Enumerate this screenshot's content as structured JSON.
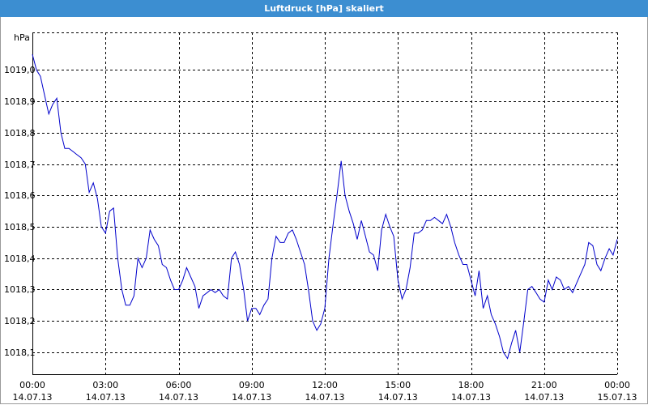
{
  "window": {
    "title": "Luftdruck [hPa] skaliert"
  },
  "chart_data": {
    "type": "line",
    "title": "Luftdruck [hPa] skaliert",
    "ylabel": "hPa",
    "xlabel": "",
    "ylim": [
      1018.03,
      1019.12
    ],
    "xlim": [
      0,
      24
    ],
    "grid": true,
    "line_color": "#0000cc",
    "grid_color": "#000000",
    "x_ticks": [
      {
        "x": 0,
        "time": "00:00",
        "date": "14.07.13"
      },
      {
        "x": 3,
        "time": "03:00",
        "date": "14.07.13"
      },
      {
        "x": 6,
        "time": "06:00",
        "date": "14.07.13"
      },
      {
        "x": 9,
        "time": "09:00",
        "date": "14.07.13"
      },
      {
        "x": 12,
        "time": "12:00",
        "date": "14.07.13"
      },
      {
        "x": 15,
        "time": "15:00",
        "date": "14.07.13"
      },
      {
        "x": 18,
        "time": "18:00",
        "date": "14.07.13"
      },
      {
        "x": 21,
        "time": "21:00",
        "date": "14.07.13"
      },
      {
        "x": 24,
        "time": "00:00",
        "date": "15.07.13"
      }
    ],
    "y_ticks": [
      {
        "v": 1019.0,
        "label": "1019,0"
      },
      {
        "v": 1018.9,
        "label": "1018,9"
      },
      {
        "v": 1018.8,
        "label": "1018,8"
      },
      {
        "v": 1018.7,
        "label": "1018,7"
      },
      {
        "v": 1018.6,
        "label": "1018,6"
      },
      {
        "v": 1018.5,
        "label": "1018,5"
      },
      {
        "v": 1018.4,
        "label": "1018,4"
      },
      {
        "v": 1018.3,
        "label": "1018,3"
      },
      {
        "v": 1018.2,
        "label": "1018,2"
      },
      {
        "v": 1018.1,
        "label": "1018,1"
      }
    ],
    "series": [
      {
        "x": [
          0,
          0.17,
          0.33,
          0.5,
          0.67,
          0.83,
          1.0,
          1.17,
          1.33,
          1.5,
          1.67,
          1.83,
          2.0,
          2.17,
          2.33,
          2.5,
          2.67,
          2.83,
          3.0,
          3.17,
          3.33,
          3.5,
          3.67,
          3.83,
          4.0,
          4.17,
          4.33,
          4.5,
          4.67,
          4.83,
          5.0,
          5.17,
          5.33,
          5.5,
          5.67,
          5.83,
          6.0,
          6.17,
          6.33,
          6.5,
          6.67,
          6.83,
          7.0,
          7.17,
          7.33,
          7.5,
          7.67,
          7.83,
          8.0,
          8.17,
          8.33,
          8.5,
          8.67,
          8.83,
          9.0,
          9.17,
          9.33,
          9.5,
          9.67,
          9.83,
          10.0,
          10.17,
          10.33,
          10.5,
          10.67,
          10.83,
          11.0,
          11.17,
          11.33,
          11.5,
          11.67,
          11.83,
          12.0,
          12.17,
          12.33,
          12.5,
          12.67,
          12.83,
          13.0,
          13.17,
          13.33,
          13.5,
          13.67,
          13.83,
          14.0,
          14.17,
          14.33,
          14.5,
          14.67,
          14.83,
          15.0,
          15.17,
          15.33,
          15.5,
          15.67,
          15.83,
          16.0,
          16.17,
          16.33,
          16.5,
          16.67,
          16.83,
          17.0,
          17.17,
          17.33,
          17.5,
          17.67,
          17.83,
          18.0,
          18.17,
          18.33,
          18.5,
          18.67,
          18.83,
          19.0,
          19.17,
          19.33,
          19.5,
          19.67,
          19.83,
          20.0,
          20.17,
          20.33,
          20.5,
          20.67,
          20.83,
          21.0,
          21.17,
          21.33,
          21.5,
          21.67,
          21.83,
          22.0,
          22.17,
          22.33,
          22.5,
          22.67,
          22.83,
          23.0,
          23.17,
          23.33,
          23.5,
          23.67,
          23.83,
          24.0
        ],
        "y": [
          1019.05,
          1019.0,
          1018.98,
          1018.92,
          1018.86,
          1018.89,
          1018.91,
          1018.8,
          1018.75,
          1018.75,
          1018.74,
          1018.73,
          1018.72,
          1018.7,
          1018.61,
          1018.64,
          1018.59,
          1018.5,
          1018.48,
          1018.55,
          1018.56,
          1018.4,
          1018.3,
          1018.25,
          1018.25,
          1018.28,
          1018.4,
          1018.37,
          1018.4,
          1018.49,
          1018.46,
          1018.44,
          1018.38,
          1018.37,
          1018.33,
          1018.3,
          1018.3,
          1018.33,
          1018.37,
          1018.34,
          1018.31,
          1018.24,
          1018.28,
          1018.29,
          1018.3,
          1018.29,
          1018.3,
          1018.28,
          1018.27,
          1018.4,
          1018.42,
          1018.38,
          1018.3,
          1018.2,
          1018.24,
          1018.24,
          1018.22,
          1018.25,
          1018.27,
          1018.4,
          1018.47,
          1018.45,
          1018.45,
          1018.48,
          1018.49,
          1018.46,
          1018.42,
          1018.38,
          1018.3,
          1018.2,
          1018.17,
          1018.19,
          1018.24,
          1018.4,
          1018.5,
          1018.6,
          1018.71,
          1018.6,
          1018.55,
          1018.51,
          1018.46,
          1018.52,
          1018.47,
          1018.42,
          1018.41,
          1018.36,
          1018.49,
          1018.54,
          1018.5,
          1018.47,
          1018.33,
          1018.27,
          1018.3,
          1018.37,
          1018.48,
          1018.48,
          1018.49,
          1018.52,
          1018.52,
          1018.53,
          1018.52,
          1018.51,
          1018.54,
          1018.5,
          1018.45,
          1018.41,
          1018.38,
          1018.38,
          1018.33,
          1018.28,
          1018.36,
          1018.24,
          1018.28,
          1018.22,
          1018.19,
          1018.15,
          1018.1,
          1018.08,
          1018.13,
          1018.17,
          1018.1,
          1018.2,
          1018.3,
          1018.31,
          1018.29,
          1018.27,
          1018.26,
          1018.33,
          1018.3,
          1018.34,
          1018.33,
          1018.3,
          1018.31,
          1018.29,
          1018.32,
          1018.35,
          1018.38,
          1018.45,
          1018.44,
          1018.38,
          1018.36,
          1018.4,
          1018.43,
          1018.41,
          1018.46
        ]
      }
    ]
  }
}
